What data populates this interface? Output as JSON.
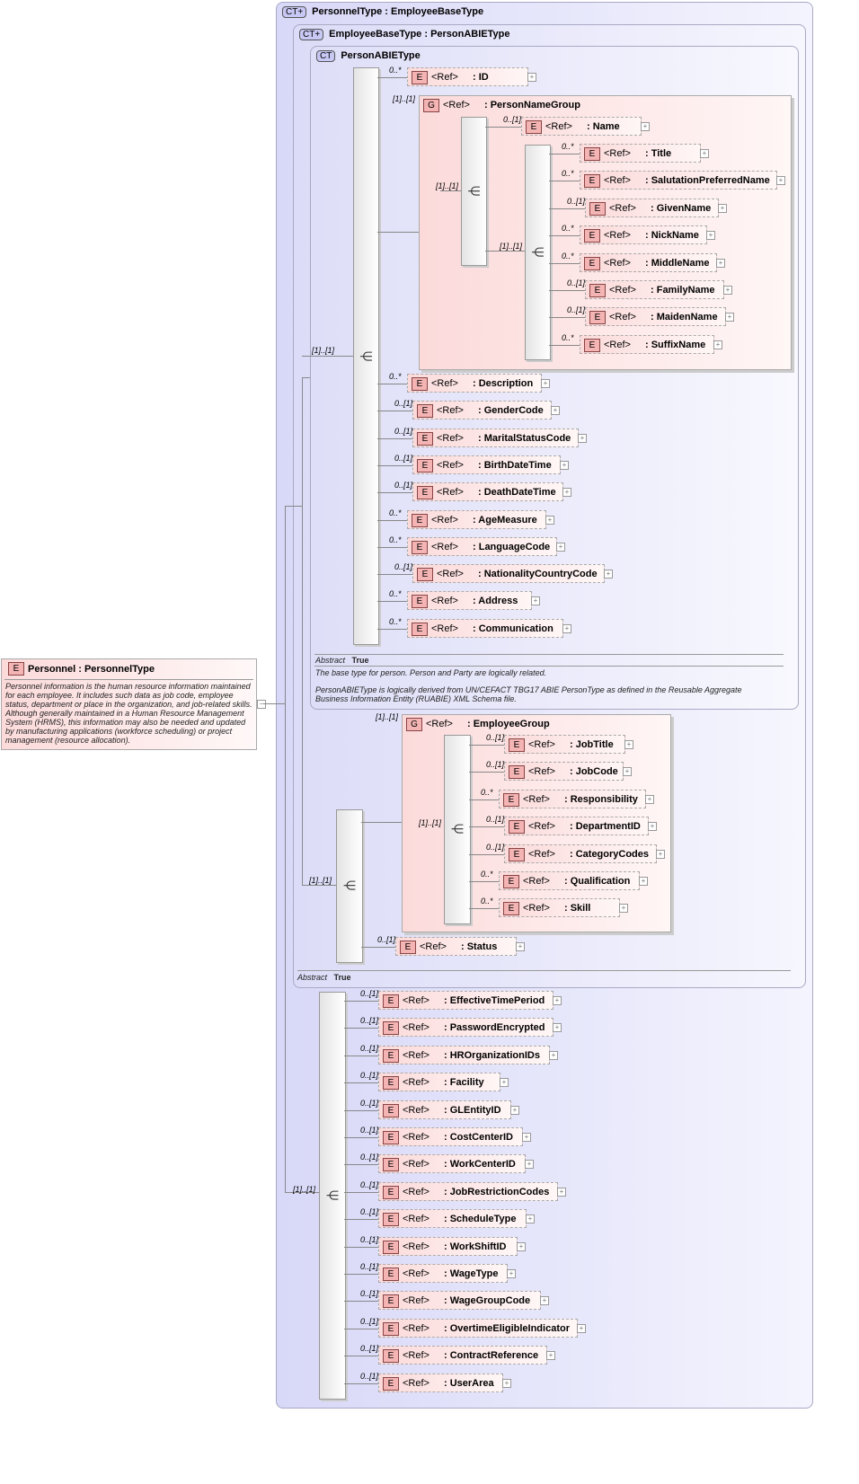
{
  "root": {
    "badge": "E",
    "name": "Personnel : PersonnelType",
    "description": "Personnel information is the human resource information maintained for each employee.  It includes such data as job code, employee status, department or place in the organization, and job-related skills.  Although generally maintained in a Human Resource Management System (HRMS), this information may also be needed and updated by manufacturing applications (workforce scheduling) or project management (resource allocation).",
    "collapse": "−"
  },
  "types": {
    "personnel": {
      "badge": "CT+",
      "label": "PersonnelType : EmployeeBaseType"
    },
    "employeeBase": {
      "badge": "CT+",
      "label": "EmployeeBaseType : PersonABIEType",
      "abstract_key": "Abstract",
      "abstract_val": "True"
    },
    "personABIE": {
      "badge": "CT",
      "label": "PersonABIEType",
      "abstract_key": "Abstract",
      "abstract_val": "True",
      "doc1": "The base type for person. Person and Party are logically related.",
      "doc2": "PersonABIEType is logically derived from UN/CEFACT TBG17 ABIE PersonType as defined in the Reusable Aggregate Business Information Entity (RUABIE) XML Schema file."
    }
  },
  "ref": "<Ref>",
  "badge_e": "E",
  "badge_g": "G",
  "seq_card": "[1]..[1]",
  "groups": {
    "personName": {
      "label": ": PersonNameGroup",
      "card": "[1]..[1]"
    },
    "employee": {
      "label": ": EmployeeGroup",
      "card": "[1]..[1]"
    }
  },
  "elements": {
    "personABIE_pre": [
      {
        "name": ": ID",
        "card": "0..*"
      }
    ],
    "personName": [
      {
        "name": ": Name",
        "card": "0..[1]"
      }
    ],
    "personNameInner": [
      {
        "name": ": Title",
        "card": "0..*"
      },
      {
        "name": ": SalutationPreferredName",
        "card": "0..*"
      },
      {
        "name": ": GivenName",
        "card": "0..[1]"
      },
      {
        "name": ": NickName",
        "card": "0..*"
      },
      {
        "name": ": MiddleName",
        "card": "0..*"
      },
      {
        "name": ": FamilyName",
        "card": "0..[1]"
      },
      {
        "name": ": MaidenName",
        "card": "0..[1]"
      },
      {
        "name": ": SuffixName",
        "card": "0..*"
      }
    ],
    "personABIE_post": [
      {
        "name": ": Description",
        "card": "0..*"
      },
      {
        "name": ": GenderCode",
        "card": "0..[1]"
      },
      {
        "name": ": MaritalStatusCode",
        "card": "0..[1]"
      },
      {
        "name": ": BirthDateTime",
        "card": "0..[1]"
      },
      {
        "name": ": DeathDateTime",
        "card": "0..[1]"
      },
      {
        "name": ": AgeMeasure",
        "card": "0..*"
      },
      {
        "name": ": LanguageCode",
        "card": "0..*"
      },
      {
        "name": ": NationalityCountryCode",
        "card": "0..[1]"
      },
      {
        "name": ": Address",
        "card": "0..*"
      },
      {
        "name": ": Communication",
        "card": "0..*"
      }
    ],
    "employee": [
      {
        "name": ": JobTitle",
        "card": "0..[1]"
      },
      {
        "name": ": JobCode",
        "card": "0..[1]"
      },
      {
        "name": ": Responsibility",
        "card": "0..*"
      },
      {
        "name": ": DepartmentID",
        "card": "0..[1]"
      },
      {
        "name": ": CategoryCodes",
        "card": "0..[1]"
      },
      {
        "name": ": Qualification",
        "card": "0..*"
      },
      {
        "name": ": Skill",
        "card": "0..*"
      }
    ],
    "employeeBase_post": [
      {
        "name": ": Status",
        "card": "0..[1]"
      }
    ],
    "personnel": [
      {
        "name": ": EffectiveTimePeriod",
        "card": "0..[1]"
      },
      {
        "name": ": PasswordEncrypted",
        "card": "0..[1]"
      },
      {
        "name": ": HROrganizationIDs",
        "card": "0..[1]"
      },
      {
        "name": ": Facility",
        "card": "0..[1]"
      },
      {
        "name": ": GLEntityID",
        "card": "0..[1]"
      },
      {
        "name": ": CostCenterID",
        "card": "0..[1]"
      },
      {
        "name": ": WorkCenterID",
        "card": "0..[1]"
      },
      {
        "name": ": JobRestrictionCodes",
        "card": "0..[1]"
      },
      {
        "name": ": ScheduleType",
        "card": "0..[1]"
      },
      {
        "name": ": WorkShiftID",
        "card": "0..[1]"
      },
      {
        "name": ": WageType",
        "card": "0..[1]"
      },
      {
        "name": ": WageGroupCode",
        "card": "0..[1]"
      },
      {
        "name": ": OvertimeEligibleIndicator",
        "card": "0..[1]"
      },
      {
        "name": ": ContractReference",
        "card": "0..[1]"
      },
      {
        "name": ": UserArea",
        "card": "0..[1]"
      }
    ]
  },
  "colors": {
    "complex_type_bg": "#d8d8f8",
    "element_bg": "#fcdada",
    "badge_bg": "#f4b4b4"
  }
}
